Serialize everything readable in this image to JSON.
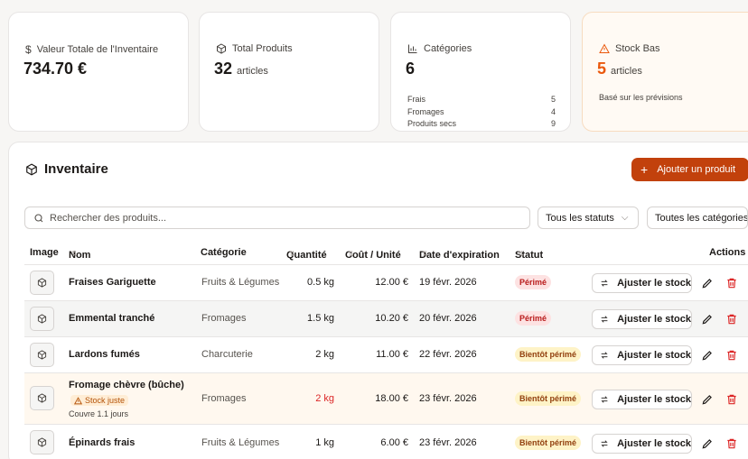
{
  "summary": {
    "total_value": {
      "label": "Valeur Totale de l'Inventaire",
      "value": "734.70 €"
    },
    "total_products": {
      "label": "Total Produits",
      "value": "32",
      "unit": "articles"
    },
    "categories": {
      "label": "Catégories",
      "value": "6",
      "items": [
        {
          "name": "Frais",
          "count": "5"
        },
        {
          "name": "Fromages",
          "count": "4"
        },
        {
          "name": "Produits secs",
          "count": "9"
        }
      ]
    },
    "low_stock": {
      "label": "Stock Bas",
      "value": "5",
      "unit": "articles",
      "note": "Basé sur les prévisions"
    }
  },
  "inventory": {
    "title": "Inventaire",
    "add_button": "Ajouter un produit",
    "search_placeholder": "Rechercher des produits...",
    "status_filter": "Tous les statuts",
    "category_filter": "Toutes les catégories",
    "columns": {
      "image": "Image",
      "name": "Nom",
      "category": "Catégorie",
      "quantity": "Quantité",
      "unit_cost": "Coût / Unité",
      "expiration": "Date d'expiration",
      "status": "Statut",
      "actions": "Actions"
    },
    "adjust_label": "Ajuster le stock",
    "rows": [
      {
        "name": "Fraises Gariguette",
        "category": "Fruits & Légumes",
        "quantity": "0.5 kg",
        "cost": "12.00 €",
        "date": "19 févr. 2026",
        "status": "Périmé"
      },
      {
        "name": "Emmental tranché",
        "category": "Fromages",
        "quantity": "1.5 kg",
        "cost": "10.20 €",
        "date": "20 févr. 2026",
        "status": "Périmé"
      },
      {
        "name": "Lardons fumés",
        "category": "Charcuterie",
        "quantity": "2 kg",
        "cost": "11.00 €",
        "date": "22 févr. 2026",
        "status": "Bientôt périmé"
      },
      {
        "name": "Fromage chèvre (bûche)",
        "category": "Fromages",
        "quantity": "2 kg",
        "cost": "18.00 €",
        "date": "23 févr. 2026",
        "status": "Bientôt périmé",
        "low_label": "Stock juste",
        "cover": "Couvre 1.1 jours"
      },
      {
        "name": "Épinards frais",
        "category": "Fruits & Légumes",
        "quantity": "1 kg",
        "cost": "6.00 €",
        "date": "23 févr. 2026",
        "status": "Bientôt périmé"
      }
    ]
  },
  "colors": {
    "accent": "#c2410c",
    "warning": "#ea580c",
    "danger": "#dc2626"
  }
}
